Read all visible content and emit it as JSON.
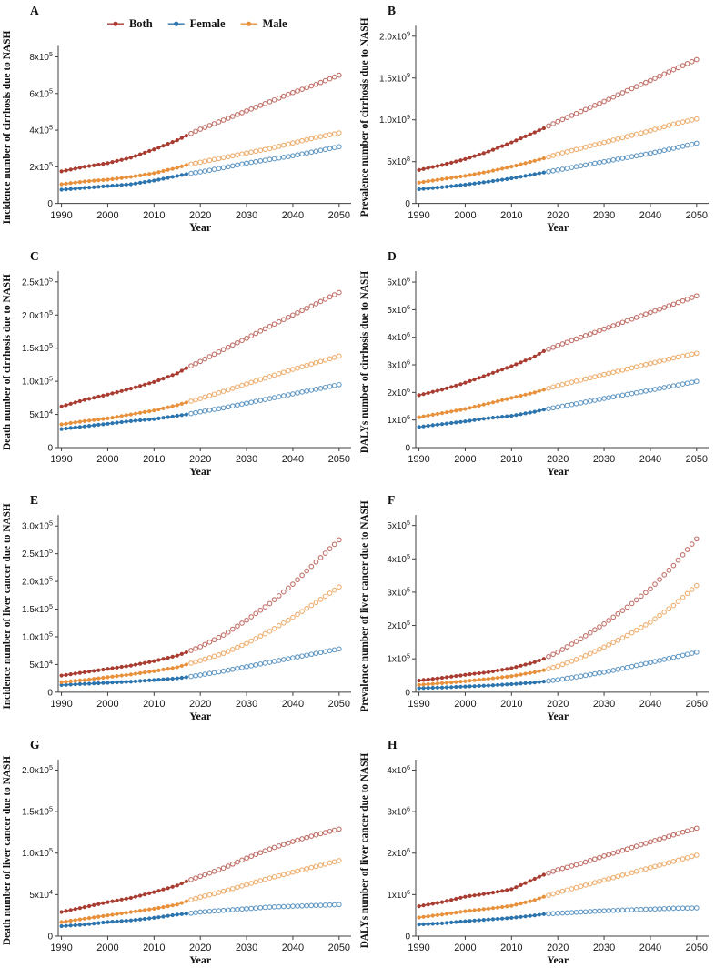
{
  "figure": {
    "background": "#ffffff",
    "text_color": "#1a1a1a",
    "axis_color": "#3f3f3f",
    "x_axis_label": "Year",
    "x_ticks": [
      1990,
      2000,
      2010,
      2020,
      2030,
      2040,
      2050
    ],
    "x_range": [
      1989.3,
      2052.0
    ],
    "historical_end_year": 2017,
    "historical_marker": "filled-circle",
    "projected_marker": "open-circle",
    "colors": {
      "both": "#A93C31",
      "female": "#2B74AE",
      "male": "#E8913C"
    },
    "legend": {
      "position": "top-of-panel-A",
      "items": [
        {
          "key": "both",
          "label": "Both"
        },
        {
          "key": "female",
          "label": "Female"
        },
        {
          "key": "male",
          "label": "Male"
        }
      ]
    }
  },
  "chart_data": [
    {
      "id": "A",
      "panel_label": "A",
      "type": "line",
      "ylabel": "Incidence number of cirrhosis due to NASH",
      "xlabel": "Year",
      "show_legend": true,
      "ylim": [
        0,
        830000
      ],
      "y_ticks": [
        {
          "value": 0,
          "label": "0"
        },
        {
          "value": 200000,
          "label": "2x10^5"
        },
        {
          "value": 400000,
          "label": "4x10^5"
        },
        {
          "value": 600000,
          "label": "6x10^5"
        },
        {
          "value": 800000,
          "label": "8x10^5"
        }
      ],
      "anchor_years": [
        1990,
        1995,
        2000,
        2005,
        2010,
        2015,
        2017,
        2020,
        2025,
        2030,
        2035,
        2040,
        2045,
        2050
      ],
      "series": [
        {
          "key": "both",
          "name": "Both",
          "anchor_values": [
            175000,
            200000,
            220000,
            250000,
            295000,
            345000,
            370000,
            405000,
            455000,
            505000,
            555000,
            605000,
            650000,
            700000
          ]
        },
        {
          "key": "female",
          "name": "Female",
          "anchor_values": [
            75000,
            85000,
            95000,
            105000,
            125000,
            150000,
            160000,
            172000,
            195000,
            220000,
            240000,
            260000,
            285000,
            310000
          ]
        },
        {
          "key": "male",
          "name": "Male",
          "anchor_values": [
            105000,
            120000,
            130000,
            145000,
            165000,
            195000,
            210000,
            225000,
            250000,
            275000,
            300000,
            330000,
            360000,
            385000
          ]
        }
      ]
    },
    {
      "id": "B",
      "panel_label": "B",
      "type": "line",
      "ylabel": "Prevalence number of cirrhosis due to NASH",
      "xlabel": "Year",
      "show_legend": false,
      "ylim": [
        0,
        2060000000
      ],
      "y_ticks": [
        {
          "value": 0,
          "label": "0"
        },
        {
          "value": 500000000,
          "label": "5x10^8"
        },
        {
          "value": 1000000000,
          "label": "1.0x10^9"
        },
        {
          "value": 1500000000,
          "label": "1.5x10^9"
        },
        {
          "value": 2000000000,
          "label": "2.0x10^9"
        }
      ],
      "anchor_years": [
        1990,
        1995,
        2000,
        2005,
        2010,
        2015,
        2017,
        2020,
        2025,
        2030,
        2035,
        2040,
        2045,
        2050
      ],
      "series": [
        {
          "key": "both",
          "name": "Both",
          "anchor_values": [
            400000000,
            460000000,
            530000000,
            620000000,
            730000000,
            850000000,
            900000000,
            980000000,
            1100000000,
            1220000000,
            1350000000,
            1470000000,
            1600000000,
            1720000000
          ]
        },
        {
          "key": "female",
          "name": "Female",
          "anchor_values": [
            170000000,
            195000000,
            225000000,
            260000000,
            300000000,
            350000000,
            370000000,
            400000000,
            450000000,
            500000000,
            550000000,
            600000000,
            660000000,
            720000000
          ]
        },
        {
          "key": "male",
          "name": "Male",
          "anchor_values": [
            250000000,
            290000000,
            330000000,
            380000000,
            440000000,
            510000000,
            540000000,
            590000000,
            660000000,
            730000000,
            800000000,
            870000000,
            950000000,
            1010000000
          ]
        }
      ]
    },
    {
      "id": "C",
      "panel_label": "C",
      "type": "line",
      "ylabel": "Death number of cirrhosis due to NASH",
      "xlabel": "Year",
      "show_legend": false,
      "ylim": [
        0,
        258000
      ],
      "y_ticks": [
        {
          "value": 0,
          "label": "0"
        },
        {
          "value": 50000,
          "label": "5x10^4"
        },
        {
          "value": 100000,
          "label": "1.0x10^5"
        },
        {
          "value": 150000,
          "label": "1.5x10^5"
        },
        {
          "value": 200000,
          "label": "2.0x10^5"
        },
        {
          "value": 250000,
          "label": "2.5x10^5"
        }
      ],
      "anchor_years": [
        1990,
        1995,
        2000,
        2005,
        2010,
        2015,
        2017,
        2020,
        2025,
        2030,
        2035,
        2040,
        2045,
        2050
      ],
      "series": [
        {
          "key": "both",
          "name": "Both",
          "anchor_values": [
            62000,
            72000,
            80000,
            89000,
            99000,
            112000,
            120000,
            130000,
            148000,
            165000,
            183000,
            200000,
            217000,
            234000
          ]
        },
        {
          "key": "female",
          "name": "Female",
          "anchor_values": [
            28000,
            32000,
            36000,
            40000,
            43000,
            48000,
            50000,
            54000,
            60000,
            67000,
            74000,
            81000,
            88000,
            95000
          ]
        },
        {
          "key": "male",
          "name": "Male",
          "anchor_values": [
            35000,
            40000,
            44000,
            50000,
            56000,
            64000,
            68000,
            74000,
            85000,
            96000,
            107000,
            118000,
            128000,
            138000
          ]
        }
      ]
    },
    {
      "id": "D",
      "panel_label": "D",
      "type": "line",
      "ylabel": "DALYs number of cirrhosis due to NASH",
      "xlabel": "Year",
      "show_legend": false,
      "ylim": [
        0,
        6200000
      ],
      "y_ticks": [
        {
          "value": 0,
          "label": "0"
        },
        {
          "value": 1000000,
          "label": "1x10^6"
        },
        {
          "value": 2000000,
          "label": "2x10^6"
        },
        {
          "value": 3000000,
          "label": "3x10^6"
        },
        {
          "value": 4000000,
          "label": "4x10^6"
        },
        {
          "value": 5000000,
          "label": "5x10^6"
        },
        {
          "value": 6000000,
          "label": "6x10^6"
        }
      ],
      "anchor_years": [
        1990,
        1995,
        2000,
        2005,
        2010,
        2015,
        2017,
        2020,
        2025,
        2030,
        2035,
        2040,
        2045,
        2050
      ],
      "series": [
        {
          "key": "both",
          "name": "Both",
          "anchor_values": [
            1900000,
            2100000,
            2350000,
            2650000,
            2950000,
            3300000,
            3500000,
            3700000,
            4000000,
            4300000,
            4600000,
            4900000,
            5200000,
            5500000
          ]
        },
        {
          "key": "female",
          "name": "Female",
          "anchor_values": [
            750000,
            850000,
            950000,
            1070000,
            1150000,
            1300000,
            1380000,
            1470000,
            1620000,
            1780000,
            1930000,
            2080000,
            2240000,
            2400000
          ]
        },
        {
          "key": "male",
          "name": "Male",
          "anchor_values": [
            1100000,
            1250000,
            1400000,
            1600000,
            1800000,
            2000000,
            2100000,
            2250000,
            2450000,
            2650000,
            2850000,
            3050000,
            3250000,
            3420000
          ]
        }
      ]
    },
    {
      "id": "E",
      "panel_label": "E",
      "type": "line",
      "ylabel": "Incidence number of liver cancer due to NASH",
      "xlabel": "Year",
      "show_legend": false,
      "ylim": [
        0,
        310000
      ],
      "y_ticks": [
        {
          "value": 0,
          "label": "0"
        },
        {
          "value": 50000,
          "label": "5x10^4"
        },
        {
          "value": 100000,
          "label": "1.0x10^5"
        },
        {
          "value": 150000,
          "label": "1.5x10^5"
        },
        {
          "value": 200000,
          "label": "2.0x10^5"
        },
        {
          "value": 250000,
          "label": "2.5x10^5"
        },
        {
          "value": 300000,
          "label": "3.0x10^5"
        }
      ],
      "anchor_years": [
        1990,
        1995,
        2000,
        2005,
        2010,
        2015,
        2017,
        2020,
        2025,
        2030,
        2035,
        2040,
        2045,
        2050
      ],
      "series": [
        {
          "key": "both",
          "name": "Both",
          "anchor_values": [
            30000,
            36000,
            42000,
            48000,
            56000,
            66000,
            72000,
            82000,
            103000,
            130000,
            160000,
            195000,
            235000,
            275000
          ]
        },
        {
          "key": "female",
          "name": "Female",
          "anchor_values": [
            13000,
            15000,
            17000,
            19000,
            22000,
            25000,
            27000,
            31000,
            38000,
            46000,
            54000,
            62000,
            70000,
            78000
          ]
        },
        {
          "key": "male",
          "name": "Male",
          "anchor_values": [
            18000,
            22000,
            27000,
            32000,
            38000,
            45000,
            50000,
            57000,
            70000,
            88000,
            110000,
            135000,
            162000,
            190000
          ]
        }
      ]
    },
    {
      "id": "F",
      "panel_label": "F",
      "type": "line",
      "ylabel": "Prevalence number of liver cancer due to NASH",
      "xlabel": "Year",
      "show_legend": false,
      "ylim": [
        0,
        515000
      ],
      "y_ticks": [
        {
          "value": 0,
          "label": "0"
        },
        {
          "value": 100000,
          "label": "1x10^5"
        },
        {
          "value": 200000,
          "label": "2x10^5"
        },
        {
          "value": 300000,
          "label": "3x10^5"
        },
        {
          "value": 400000,
          "label": "4x10^5"
        },
        {
          "value": 500000,
          "label": "5x10^5"
        }
      ],
      "anchor_years": [
        1990,
        1995,
        2000,
        2005,
        2010,
        2015,
        2017,
        2020,
        2025,
        2030,
        2035,
        2040,
        2045,
        2050
      ],
      "series": [
        {
          "key": "both",
          "name": "Both",
          "anchor_values": [
            35000,
            43000,
            52000,
            60000,
            72000,
            90000,
            100000,
            120000,
            160000,
            205000,
            255000,
            310000,
            380000,
            460000
          ]
        },
        {
          "key": "female",
          "name": "Female",
          "anchor_values": [
            12000,
            14000,
            17000,
            20000,
            24000,
            29000,
            32000,
            37000,
            48000,
            60000,
            74000,
            89000,
            104000,
            120000
          ]
        },
        {
          "key": "male",
          "name": "Male",
          "anchor_values": [
            22000,
            27000,
            33000,
            40000,
            48000,
            60000,
            66000,
            78000,
            103000,
            135000,
            170000,
            210000,
            260000,
            320000
          ]
        }
      ]
    },
    {
      "id": "G",
      "panel_label": "G",
      "type": "line",
      "ylabel": "Death number of liver cancer due to NASH",
      "xlabel": "Year",
      "show_legend": false,
      "ylim": [
        0,
        206000
      ],
      "y_ticks": [
        {
          "value": 0,
          "label": "0"
        },
        {
          "value": 50000,
          "label": "5x10^4"
        },
        {
          "value": 100000,
          "label": "1.0x10^5"
        },
        {
          "value": 150000,
          "label": "1.5x10^5"
        },
        {
          "value": 200000,
          "label": "2.0x10^5"
        }
      ],
      "anchor_years": [
        1990,
        1995,
        2000,
        2005,
        2010,
        2015,
        2017,
        2020,
        2025,
        2030,
        2035,
        2040,
        2045,
        2050
      ],
      "series": [
        {
          "key": "both",
          "name": "Both",
          "anchor_values": [
            29000,
            35000,
            41000,
            46000,
            53000,
            61000,
            66000,
            72000,
            82000,
            94000,
            105000,
            114000,
            122000,
            129000
          ]
        },
        {
          "key": "female",
          "name": "Female",
          "anchor_values": [
            12000,
            14000,
            17000,
            19000,
            22000,
            26000,
            27000,
            29000,
            31000,
            33000,
            35000,
            36000,
            37000,
            38000
          ]
        },
        {
          "key": "male",
          "name": "Male",
          "anchor_values": [
            17000,
            21000,
            25000,
            29000,
            33000,
            38000,
            42000,
            47000,
            54000,
            62000,
            70000,
            77000,
            84000,
            91000
          ]
        }
      ]
    },
    {
      "id": "H",
      "panel_label": "H",
      "type": "line",
      "ylabel": "DALYs number of liver cancer due to NASH",
      "xlabel": "Year",
      "show_legend": false,
      "ylim": [
        0,
        4120000
      ],
      "y_ticks": [
        {
          "value": 0,
          "label": "0"
        },
        {
          "value": 1000000,
          "label": "1x10^6"
        },
        {
          "value": 2000000,
          "label": "2x10^6"
        },
        {
          "value": 3000000,
          "label": "3x10^6"
        },
        {
          "value": 4000000,
          "label": "4x10^6"
        }
      ],
      "anchor_years": [
        1990,
        1995,
        2000,
        2005,
        2010,
        2015,
        2017,
        2020,
        2025,
        2030,
        2035,
        2040,
        2045,
        2050
      ],
      "series": [
        {
          "key": "both",
          "name": "Both",
          "anchor_values": [
            720000,
            820000,
            950000,
            1030000,
            1130000,
            1380000,
            1480000,
            1600000,
            1750000,
            1930000,
            2100000,
            2270000,
            2440000,
            2600000
          ]
        },
        {
          "key": "female",
          "name": "Female",
          "anchor_values": [
            280000,
            310000,
            360000,
            400000,
            440000,
            500000,
            530000,
            550000,
            580000,
            610000,
            630000,
            650000,
            670000,
            680000
          ]
        },
        {
          "key": "male",
          "name": "Male",
          "anchor_values": [
            450000,
            520000,
            600000,
            660000,
            730000,
            870000,
            950000,
            1050000,
            1200000,
            1350000,
            1500000,
            1650000,
            1800000,
            1950000
          ]
        }
      ]
    }
  ]
}
